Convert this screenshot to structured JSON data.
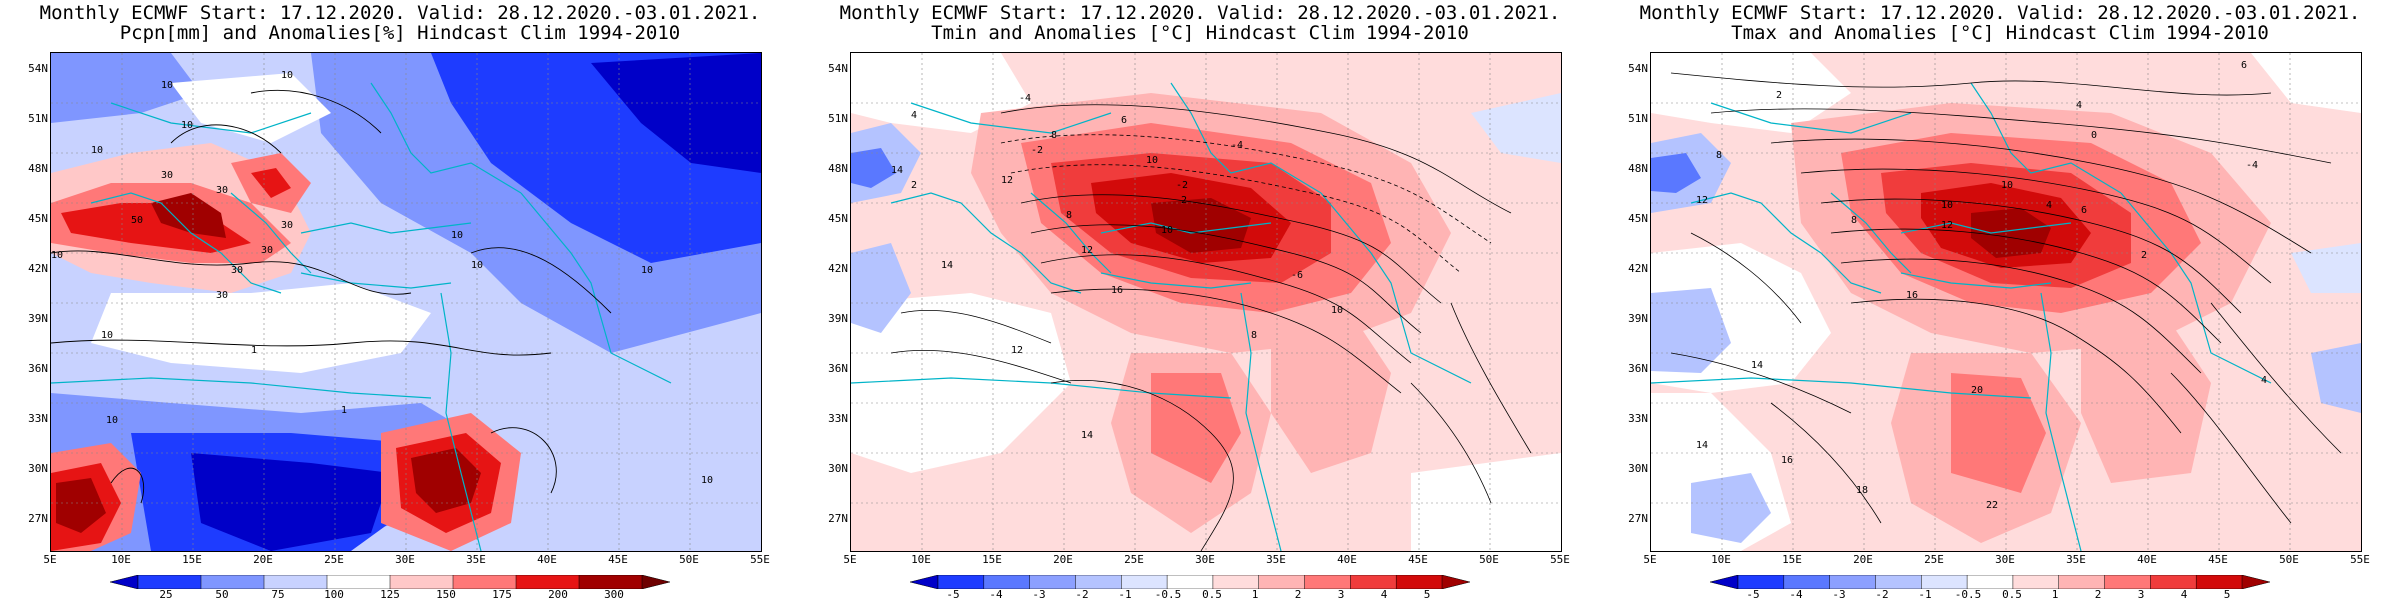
{
  "panels": [
    {
      "title_line1": "Monthly ECMWF Start: 17.12.2020. Valid: 28.12.2020.-03.01.2021.",
      "title_line2": "Pcpn[mm] and Anomalies[%] Hindcast Clim 1994-2010",
      "colorbar": {
        "labels": [
          "25",
          "50",
          "75",
          "100",
          "125",
          "150",
          "175",
          "200",
          "300"
        ],
        "colors": [
          "#0000c8",
          "#1e3cff",
          "#7f96ff",
          "#c8d2ff",
          "#ffffff",
          "#ffc8c8",
          "#ff7878",
          "#e61414",
          "#a00000",
          "#6e0000"
        ]
      },
      "contour_labels": [
        "10",
        "10",
        "10",
        "10",
        "30",
        "30",
        "50",
        "30",
        "30",
        "10",
        "30",
        "10",
        "30",
        "10",
        "10",
        "1",
        "10",
        "1",
        "10",
        "10"
      ]
    },
    {
      "title_line1": "Monthly ECMWF Start: 17.12.2020. Valid: 28.12.2020.-03.01.2021.",
      "title_line2": "Tmin and Anomalies [°C] Hindcast Clim 1994-2010",
      "colorbar": {
        "labels": [
          "-5",
          "-4",
          "-3",
          "-2",
          "-1",
          "-0.5",
          "0.5",
          "1",
          "2",
          "3",
          "4",
          "5"
        ],
        "colors": [
          "#0000c8",
          "#1e3cff",
          "#5a78ff",
          "#8ca0ff",
          "#b4c3ff",
          "#dce4ff",
          "#ffffff",
          "#ffdcdc",
          "#ffb4b4",
          "#ff7878",
          "#f03c3c",
          "#d20a0a",
          "#a00000"
        ]
      },
      "contour_labels": [
        "-4",
        "2",
        "4",
        "6",
        "8",
        "-2",
        "10",
        "-4",
        "12",
        "14",
        "-2",
        "2",
        "8",
        "10",
        "12",
        "14",
        "16",
        "-6",
        "8",
        "10",
        "12",
        "14"
      ]
    },
    {
      "title_line1": "Monthly ECMWF Start: 17.12.2020. Valid: 28.12.2020.-03.01.2021.",
      "title_line2": "Tmax and Anomalies [°C] Hindcast Clim 1994-2010",
      "colorbar": {
        "labels": [
          "-5",
          "-4",
          "-3",
          "-2",
          "-1",
          "-0.5",
          "0.5",
          "1",
          "2",
          "3",
          "4",
          "5"
        ],
        "colors": [
          "#0000c8",
          "#1e3cff",
          "#5a78ff",
          "#8ca0ff",
          "#b4c3ff",
          "#dce4ff",
          "#ffffff",
          "#ffdcdc",
          "#ffb4b4",
          "#ff7878",
          "#f03c3c",
          "#d20a0a",
          "#a00000"
        ]
      },
      "contour_labels": [
        "2",
        "4",
        "6",
        "0",
        "-4",
        "8",
        "10",
        "12",
        "14",
        "16",
        "4",
        "6",
        "8",
        "10",
        "12",
        "14",
        "16",
        "18",
        "20",
        "22",
        "2",
        "4"
      ]
    }
  ],
  "lat_labels": [
    "54N",
    "51N",
    "48N",
    "45N",
    "42N",
    "39N",
    "36N",
    "33N",
    "30N",
    "27N"
  ],
  "lon_labels": [
    "5E",
    "10E",
    "15E",
    "20E",
    "25E",
    "30E",
    "35E",
    "40E",
    "45E",
    "50E",
    "55E"
  ]
}
